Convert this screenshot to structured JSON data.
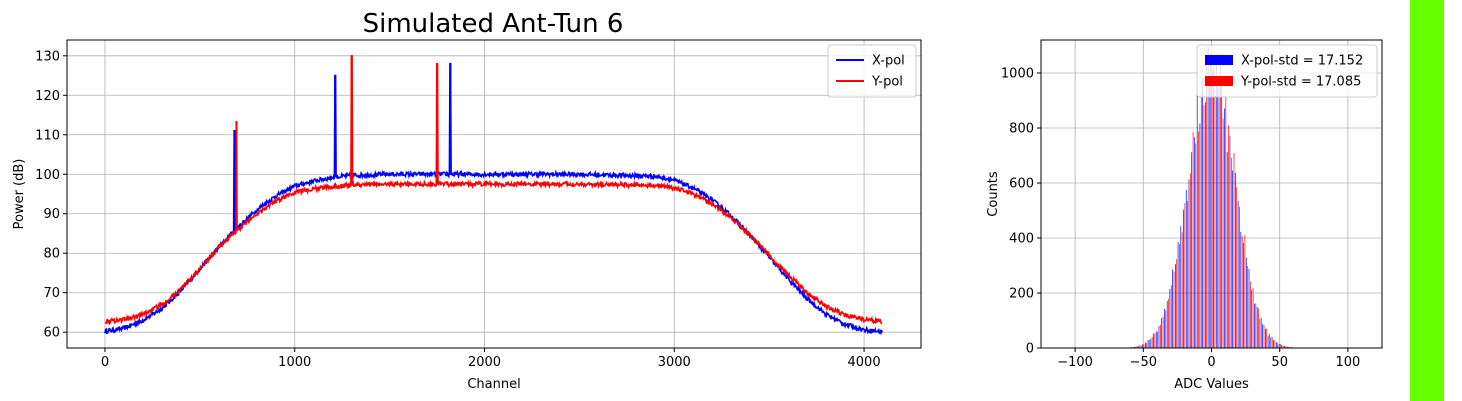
{
  "colors": {
    "x_pol": "#0000ff",
    "y_pol": "#ff0000",
    "grid": "#b0b0b0",
    "status_bar": "#66ff00"
  },
  "chart_data": [
    {
      "type": "line",
      "title": "Simulated Ant-Tun 6",
      "xlabel": "Channel",
      "ylabel": "Power (dB)",
      "xlim": [
        -200,
        4300
      ],
      "ylim": [
        56,
        134
      ],
      "xticks": [
        0,
        1000,
        2000,
        3000,
        4000
      ],
      "yticks": [
        60,
        70,
        80,
        90,
        100,
        110,
        120,
        130
      ],
      "grid": true,
      "legend_position": "top-right",
      "series": [
        {
          "name": "X-pol",
          "color": "#0000ff",
          "x": [
            0,
            100,
            200,
            300,
            400,
            500,
            600,
            700,
            800,
            900,
            1000,
            1100,
            1200,
            1300,
            1500,
            2000,
            2500,
            2900,
            3000,
            3100,
            3200,
            3300,
            3400,
            3500,
            3600,
            3700,
            3800,
            3900,
            4000,
            4095
          ],
          "y": [
            60.2,
            61,
            63,
            66,
            70.5,
            76,
            81.5,
            86.5,
            91,
            94.5,
            97,
            98.3,
            99.2,
            99.7,
            100,
            100,
            100,
            99.5,
            98.5,
            96.5,
            93.5,
            89.5,
            84.5,
            79,
            73.5,
            68.5,
            64.5,
            62,
            60.6,
            60.1
          ],
          "spikes": [
            [
              683,
              111
            ],
            [
              1213,
              125
            ],
            [
              1820,
              128
            ]
          ]
        },
        {
          "name": "Y-pol",
          "color": "#ff0000",
          "x": [
            0,
            100,
            200,
            300,
            400,
            500,
            600,
            700,
            800,
            900,
            1000,
            1100,
            1200,
            1300,
            1500,
            2000,
            2500,
            2900,
            3000,
            3100,
            3200,
            3300,
            3400,
            3500,
            3600,
            3700,
            3800,
            3900,
            4000,
            4095
          ],
          "y": [
            62.8,
            63.2,
            64.5,
            67,
            71,
            76,
            81.5,
            86,
            90,
            93.3,
            95.3,
            96.3,
            96.9,
            97.3,
            97.5,
            97.5,
            97.5,
            97.2,
            96.5,
            95,
            92.5,
            89,
            84.5,
            79.5,
            74.5,
            70,
            66.5,
            64.3,
            63.2,
            62.8
          ],
          "spikes": [
            [
              693,
              113.5
            ],
            [
              1300,
              130
            ],
            [
              1750,
              128
            ]
          ]
        }
      ]
    },
    {
      "type": "bar",
      "title": "",
      "xlabel": "ADC Values",
      "ylabel": "Counts",
      "xlim": [
        -125,
        125
      ],
      "ylim": [
        0,
        1120
      ],
      "xticks": [
        -100,
        -50,
        0,
        50,
        100
      ],
      "yticks": [
        0,
        200,
        400,
        600,
        800,
        1000
      ],
      "grid": true,
      "legend_position": "top-right",
      "series": [
        {
          "name": "X-pol-std = 17.152",
          "color": "#0000ff",
          "std": 17.152,
          "peak": 1010
        },
        {
          "name": "Y-pol-std = 17.085",
          "color": "#ff0000",
          "std": 17.085,
          "peak": 1020
        }
      ]
    }
  ]
}
